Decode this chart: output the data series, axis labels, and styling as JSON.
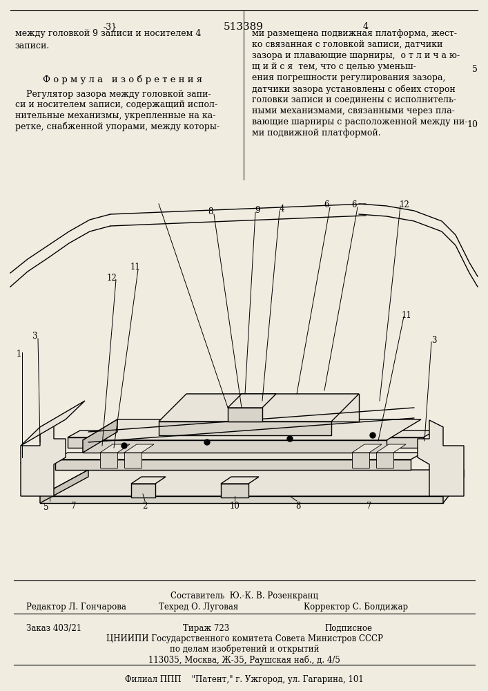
{
  "page_color": "#f0ece0",
  "patent_number": "513389",
  "col3_marker": "-3}",
  "left_col_top_text": "между головкой 9 записи и носителем 4\nзаписи.",
  "formula_header": "Ф о р м у л а   и з о б р е т е н и я",
  "formula_body_lines": [
    "    Регулятор зазора между головкой запи-",
    "си и носителем записи, содержащий испол-",
    "нительные механизмы, укрепленные на ка-",
    "ретке, снабженной упорами, между которы-"
  ],
  "right_col_text_lines": [
    "ми размещена подвижная платформа, жест-",
    "ко связанная с головкой записи, датчики",
    "зазора и плавающие шарниры,  о т л и ч а ю-",
    "щ и й с я  тем, что с целью уменьш-",
    "ения погрешности регулирования зазора,",
    "датчики зазора установлены с обеих сторон",
    "головки записи и соединены с исполнитель-",
    "ными механизмами, связанными через пла-",
    "вающие шарниры с расположенной между ни-",
    "ми подвижной платформой."
  ],
  "footer_sestavitel": "Составитель  Ю.-К. В. Розенкранц",
  "footer_redaktor": "Редактор Л. Гончарова",
  "footer_tekhred": "Техред О. Луговая",
  "footer_korrektor": "Корректор С. Болдижар",
  "footer_zakaz": "Заказ 403/21",
  "footer_tirazh": "Тираж 723",
  "footer_podpisnoe": "Подписное",
  "footer_tsniipi": "ЦНИИПИ Государственного комитета Совета Министров СССР",
  "footer_po_delam": "по делам изобретений и открытий",
  "footer_address": "113035, Москва, Ж-35, Раушская наб., д. 4/5",
  "footer_filial": "Филиал ППП    \"Патент,\" г. Ужгород, ул. Гагарина, 101"
}
